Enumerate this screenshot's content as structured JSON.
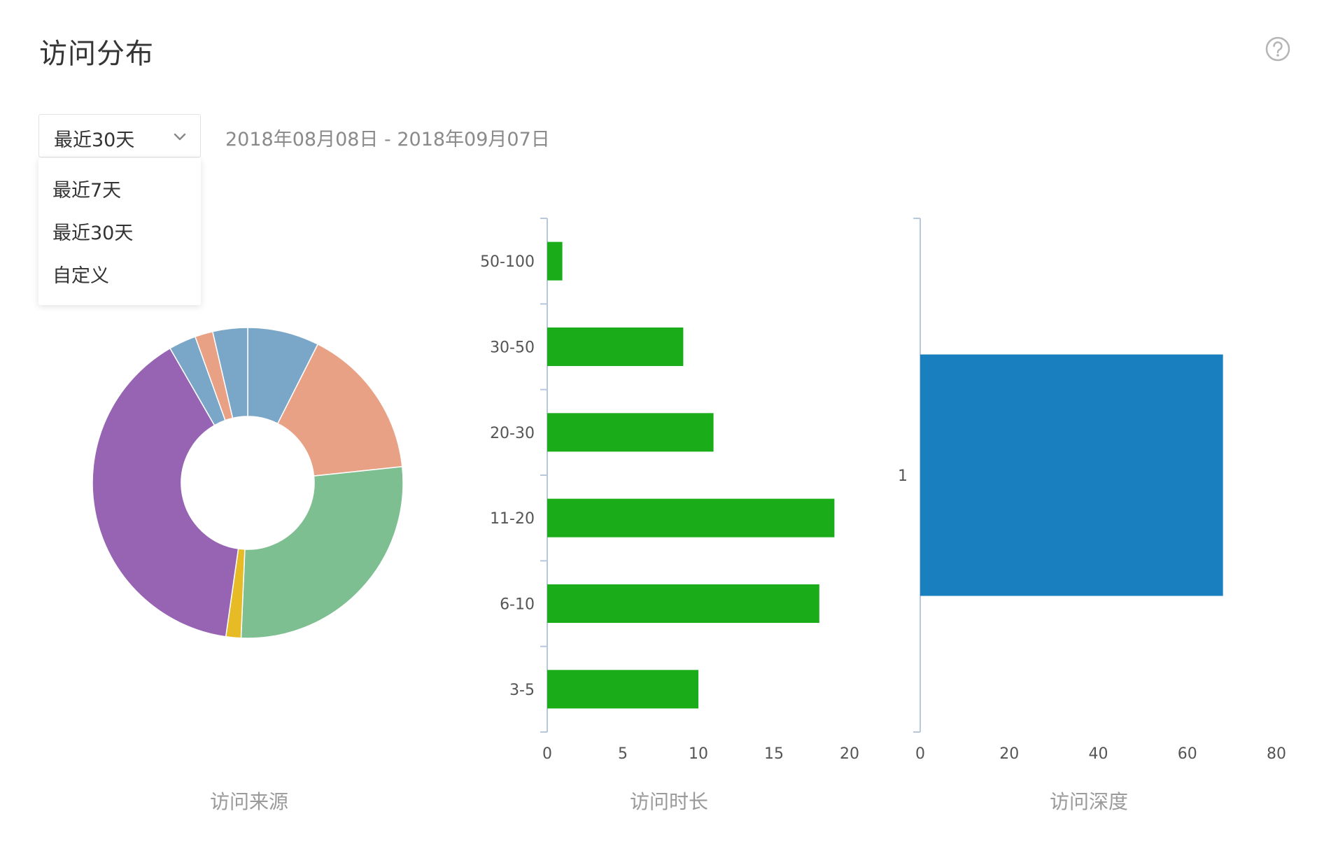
{
  "page": {
    "title": "访问分布"
  },
  "icons": {
    "help": "question-circle-icon",
    "chevron": "chevron-down-icon"
  },
  "date_filter": {
    "selected": "最近30天",
    "range": "2018年08月08日 - 2018年09月07日",
    "options": [
      "最近7天",
      "最近30天",
      "自定义"
    ]
  },
  "colors": {
    "duration_bar": "#1aad19",
    "depth_bar": "#1a7fbf",
    "axis": "#b7c8dc",
    "pie": [
      "#7aa7c8",
      "#e9a185",
      "#7ebf91",
      "#e6bb25",
      "#9764b3"
    ]
  },
  "chart_data": [
    {
      "type": "pie",
      "title": "访问来源",
      "donut": true,
      "values": [
        7.6,
        16.2,
        27.9,
        1.6,
        40.2,
        2.9,
        1.9,
        3.7
      ],
      "slice_colors": [
        "#7aa7c8",
        "#e9a185",
        "#7ebf91",
        "#e6bb25",
        "#9764b3",
        "#7aa7c8",
        "#e9a185",
        "#7aa7c8"
      ]
    },
    {
      "type": "bar",
      "orientation": "horizontal",
      "title": "访问时长",
      "categories": [
        "50-100",
        "30-50",
        "20-30",
        "11-20",
        "6-10",
        "3-5"
      ],
      "values": [
        1,
        9,
        11,
        19,
        18,
        10
      ],
      "xlim": [
        0,
        20
      ],
      "xticks": [
        "0",
        "5",
        "10",
        "15",
        "20"
      ]
    },
    {
      "type": "bar",
      "orientation": "horizontal",
      "title": "访问深度",
      "categories": [
        "1"
      ],
      "values": [
        68
      ],
      "xlim": [
        0,
        80
      ],
      "xticks": [
        "0",
        "20",
        "40",
        "60",
        "80"
      ]
    }
  ]
}
